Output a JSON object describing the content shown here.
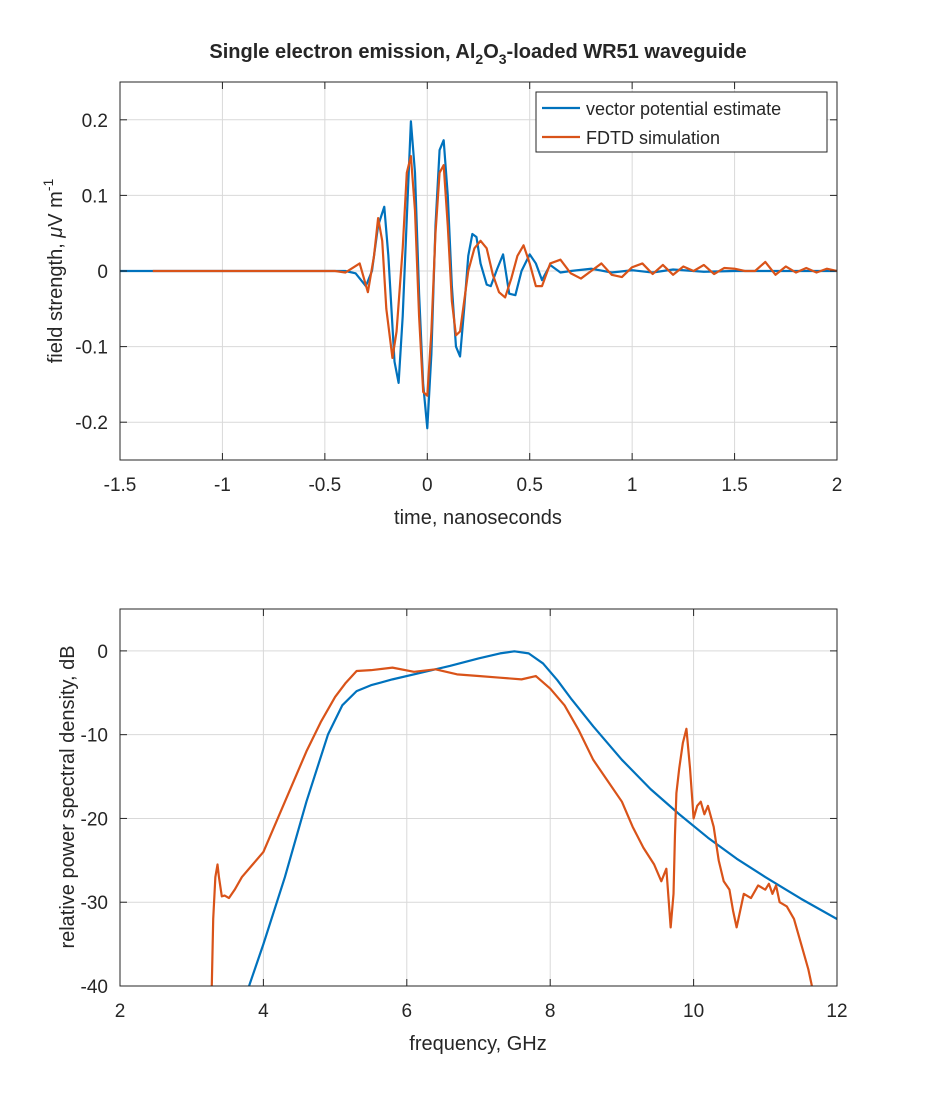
{
  "figure_title": {
    "prefix": "Single electron emission, Al",
    "sub1": "2",
    "mid": "O",
    "sub2": "3",
    "suffix": "-loaded WR51 waveguide"
  },
  "colors": {
    "blue": "#0072BD",
    "orange": "#D95319",
    "axis": "#262626",
    "grid": "#d9d9d9"
  },
  "chart_data": [
    {
      "type": "line",
      "name": "time-domain",
      "xlabel": "time, nanoseconds",
      "ylabel_parts": {
        "prefix": "field strength, ",
        "mu": "μ",
        "mid": "V m",
        "sup": "-1"
      },
      "xlim": [
        -1.5,
        2
      ],
      "ylim": [
        -0.25,
        0.25
      ],
      "xticks": [
        -1.5,
        -1,
        -0.5,
        0,
        0.5,
        1,
        1.5,
        2
      ],
      "xtick_labels": [
        "-1.5",
        "-1",
        "-0.5",
        "0",
        "0.5",
        "1",
        "1.5",
        "2"
      ],
      "yticks": [
        -0.2,
        -0.1,
        0,
        0.1,
        0.2
      ],
      "ytick_labels": [
        "-0.2",
        "-0.1",
        "0",
        "0.1",
        "0.2"
      ],
      "grid": true,
      "legend": {
        "location": "top-right",
        "entries": [
          "vector potential estimate",
          "FDTD simulation"
        ]
      },
      "series": [
        {
          "name": "vector potential estimate",
          "color": "#0072BD",
          "x": [
            -1.5,
            -0.5,
            -0.4,
            -0.35,
            -0.3,
            -0.27,
            -0.24,
            -0.21,
            -0.19,
            -0.16,
            -0.14,
            -0.12,
            -0.1,
            -0.08,
            -0.06,
            -0.04,
            -0.02,
            0,
            0.02,
            0.04,
            0.06,
            0.08,
            0.1,
            0.12,
            0.14,
            0.16,
            0.18,
            0.2,
            0.22,
            0.24,
            0.26,
            0.29,
            0.31,
            0.34,
            0.37,
            0.4,
            0.43,
            0.46,
            0.5,
            0.53,
            0.56,
            0.6,
            0.65,
            0.7,
            0.8,
            0.9,
            1.0,
            1.1,
            1.2,
            1.35,
            1.5,
            1.7,
            2.0
          ],
          "y": [
            0,
            0,
            0.0,
            -0.003,
            -0.02,
            0.0,
            0.06,
            0.085,
            0.02,
            -0.12,
            -0.148,
            -0.06,
            0.07,
            0.198,
            0.13,
            -0.03,
            -0.15,
            -0.208,
            -0.11,
            0.06,
            0.16,
            0.173,
            0.1,
            -0.02,
            -0.1,
            -0.113,
            -0.05,
            0.02,
            0.049,
            0.045,
            0.01,
            -0.018,
            -0.02,
            0.002,
            0.022,
            -0.03,
            -0.032,
            0.0,
            0.022,
            0.01,
            -0.012,
            0.008,
            -0.002,
            0.0,
            0.003,
            -0.002,
            0.001,
            -0.002,
            0.002,
            -0.001,
            0.0,
            0.0,
            0.0
          ]
        },
        {
          "name": "FDTD simulation",
          "color": "#D95319",
          "x": [
            -1.34,
            -0.45,
            -0.4,
            -0.33,
            -0.29,
            -0.26,
            -0.24,
            -0.22,
            -0.2,
            -0.17,
            -0.15,
            -0.12,
            -0.1,
            -0.08,
            -0.06,
            -0.04,
            -0.02,
            0,
            0.02,
            0.04,
            0.06,
            0.08,
            0.1,
            0.12,
            0.14,
            0.16,
            0.18,
            0.2,
            0.23,
            0.26,
            0.29,
            0.32,
            0.35,
            0.38,
            0.41,
            0.44,
            0.47,
            0.5,
            0.53,
            0.56,
            0.6,
            0.65,
            0.7,
            0.75,
            0.8,
            0.85,
            0.9,
            0.95,
            1.0,
            1.05,
            1.1,
            1.15,
            1.2,
            1.25,
            1.3,
            1.35,
            1.4,
            1.45,
            1.5,
            1.55,
            1.6,
            1.65,
            1.7,
            1.75,
            1.8,
            1.85,
            1.9,
            1.95,
            2.0
          ],
          "y": [
            0,
            0.0,
            -0.002,
            0.01,
            -0.028,
            0.02,
            0.07,
            0.04,
            -0.05,
            -0.115,
            -0.08,
            0.03,
            0.13,
            0.152,
            0.08,
            -0.06,
            -0.16,
            -0.165,
            -0.08,
            0.05,
            0.13,
            0.14,
            0.06,
            -0.04,
            -0.085,
            -0.08,
            -0.04,
            0.0,
            0.03,
            0.04,
            0.03,
            -0.005,
            -0.028,
            -0.035,
            -0.01,
            0.02,
            0.034,
            0.01,
            -0.02,
            -0.02,
            0.01,
            0.015,
            -0.003,
            -0.01,
            0.0,
            0.01,
            -0.005,
            -0.008,
            0.005,
            0.01,
            -0.004,
            0.008,
            -0.005,
            0.006,
            0.0,
            0.008,
            -0.004,
            0.004,
            0.003,
            0.0,
            0.0,
            0.012,
            -0.005,
            0.006,
            -0.002,
            0.004,
            -0.002,
            0.003,
            0.0
          ]
        }
      ]
    },
    {
      "type": "line",
      "name": "frequency-domain",
      "xlabel": "frequency, GHz",
      "ylabel": "relative power spectral density, dB",
      "xlim": [
        2,
        12
      ],
      "ylim": [
        -40,
        5
      ],
      "xticks": [
        2,
        4,
        6,
        8,
        10,
        12
      ],
      "xtick_labels": [
        "2",
        "4",
        "6",
        "8",
        "10",
        "12"
      ],
      "yticks": [
        -40,
        -30,
        -20,
        -10,
        0
      ],
      "ytick_labels": [
        "-40",
        "-30",
        "-20",
        "-10",
        "0"
      ],
      "grid": true,
      "series": [
        {
          "name": "vector potential estimate",
          "color": "#0072BD",
          "x": [
            3.8,
            4.0,
            4.3,
            4.6,
            4.9,
            5.1,
            5.3,
            5.5,
            5.8,
            6.2,
            6.6,
            7.0,
            7.3,
            7.5,
            7.7,
            7.9,
            8.1,
            8.3,
            8.6,
            9.0,
            9.4,
            9.8,
            10.2,
            10.6,
            11.0,
            11.5,
            12.0
          ],
          "y": [
            -40,
            -35,
            -27,
            -18,
            -10,
            -6.5,
            -4.8,
            -4.1,
            -3.4,
            -2.6,
            -1.8,
            -0.9,
            -0.3,
            -0.05,
            -0.3,
            -1.5,
            -3.5,
            -5.8,
            -9.0,
            -13.0,
            -16.5,
            -19.5,
            -22.3,
            -24.8,
            -27.0,
            -29.6,
            -32.0
          ]
        },
        {
          "name": "FDTD simulation",
          "color": "#D95319",
          "x": [
            3.28,
            3.3,
            3.33,
            3.36,
            3.38,
            3.42,
            3.46,
            3.52,
            3.6,
            3.7,
            3.85,
            4.0,
            4.2,
            4.4,
            4.6,
            4.8,
            5.0,
            5.15,
            5.3,
            5.5,
            5.8,
            6.1,
            6.4,
            6.7,
            7.0,
            7.3,
            7.6,
            7.8,
            8.0,
            8.2,
            8.4,
            8.6,
            8.8,
            9.0,
            9.15,
            9.3,
            9.45,
            9.55,
            9.62,
            9.68,
            9.72,
            9.74,
            9.76,
            9.8,
            9.85,
            9.9,
            9.95,
            10.0,
            10.05,
            10.1,
            10.15,
            10.2,
            10.28,
            10.35,
            10.42,
            10.5,
            10.55,
            10.6,
            10.65,
            10.7,
            10.8,
            10.9,
            11.0,
            11.05,
            11.1,
            11.15,
            11.2,
            11.3,
            11.4,
            11.5,
            11.6,
            11.65
          ],
          "y": [
            -40,
            -32,
            -27,
            -25.5,
            -27,
            -29.3,
            -29.2,
            -29.5,
            -28.5,
            -27,
            -25.5,
            -24,
            -20,
            -16,
            -12,
            -8.5,
            -5.5,
            -3.8,
            -2.4,
            -2.3,
            -2.0,
            -2.5,
            -2.2,
            -2.8,
            -3.0,
            -3.2,
            -3.4,
            -3.0,
            -4.5,
            -6.5,
            -9.5,
            -13,
            -15.5,
            -18,
            -21,
            -23.5,
            -25.5,
            -27.5,
            -26,
            -33,
            -29,
            -22,
            -17,
            -14,
            -11,
            -9.3,
            -14,
            -20,
            -18.5,
            -18,
            -19.5,
            -18.5,
            -21,
            -25,
            -27.5,
            -28.5,
            -31,
            -33,
            -31,
            -29,
            -29.5,
            -28,
            -28.5,
            -27.8,
            -29,
            -28,
            -30,
            -30.5,
            -32,
            -35,
            -38,
            -40
          ]
        }
      ]
    }
  ]
}
